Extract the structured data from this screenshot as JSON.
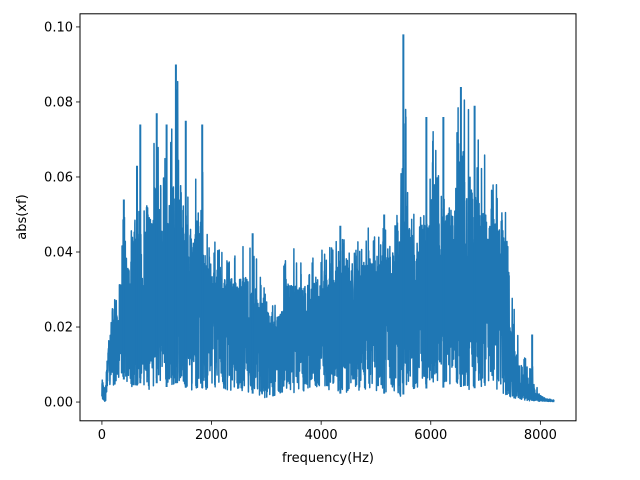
{
  "chart_data": {
    "type": "line",
    "title": "",
    "xlabel": "frequency(Hz)",
    "ylabel": "abs(xf)",
    "xlim": [
      -400,
      8650
    ],
    "ylim": [
      -0.005,
      0.1035
    ],
    "xticks": [
      0,
      2000,
      4000,
      6000,
      8000
    ],
    "xtick_labels": [
      "0",
      "2000",
      "4000",
      "6000",
      "8000"
    ],
    "yticks": [
      0.0,
      0.02,
      0.04,
      0.06,
      0.08,
      0.1
    ],
    "ytick_labels": [
      "0.00",
      "0.02",
      "0.04",
      "0.06",
      "0.08",
      "0.10"
    ],
    "grid": false,
    "series": [
      {
        "color": "#1f77b4",
        "x_range": [
          0,
          8250
        ],
        "envelope": {
          "x": [
            0,
            60,
            120,
            200,
            300,
            400,
            500,
            600,
            700,
            800,
            900,
            1000,
            1100,
            1200,
            1350,
            1500,
            1650,
            1800,
            1900,
            2000,
            2200,
            2400,
            2600,
            2800,
            3000,
            3200,
            3400,
            3600,
            3800,
            4000,
            4200,
            4400,
            4600,
            4800,
            5000,
            5200,
            5400,
            5500,
            5600,
            5800,
            6000,
            6200,
            6400,
            6550,
            6700,
            6850,
            7000,
            7200,
            7350,
            7450,
            7550,
            7700,
            7800,
            7900,
            8000,
            8100,
            8250
          ],
          "upper": [
            0.0075,
            0.004,
            0.017,
            0.033,
            0.026,
            0.054,
            0.044,
            0.067,
            0.074,
            0.05,
            0.069,
            0.077,
            0.058,
            0.074,
            0.09,
            0.075,
            0.056,
            0.074,
            0.045,
            0.044,
            0.043,
            0.04,
            0.045,
            0.04,
            0.03,
            0.028,
            0.043,
            0.04,
            0.04,
            0.044,
            0.042,
            0.047,
            0.042,
            0.046,
            0.05,
            0.047,
            0.05,
            0.098,
            0.051,
            0.05,
            0.076,
            0.058,
            0.074,
            0.084,
            0.079,
            0.072,
            0.067,
            0.064,
            0.054,
            0.035,
            0.023,
            0.012,
            0.018,
            0.005,
            0.0025,
            0.001,
            0.0005
          ],
          "lower": [
            0.0,
            0.0,
            0.003,
            0.004,
            0.005,
            0.006,
            0.004,
            0.004,
            0.005,
            0.004,
            0.003,
            0.005,
            0.004,
            0.004,
            0.005,
            0.004,
            0.003,
            0.004,
            0.003,
            0.004,
            0.003,
            0.003,
            0.003,
            0.002,
            0.001,
            0.002,
            0.003,
            0.002,
            0.003,
            0.004,
            0.003,
            0.002,
            0.003,
            0.003,
            0.003,
            0.002,
            0.001,
            0.002,
            0.003,
            0.003,
            0.004,
            0.004,
            0.003,
            0.004,
            0.003,
            0.004,
            0.004,
            0.003,
            0.002,
            0.001,
            0.001,
            0.0005,
            0.0003,
            0.0003,
            0.0002,
            0.0002,
            0.0001
          ],
          "typical": [
            0.005,
            0.002,
            0.012,
            0.018,
            0.018,
            0.025,
            0.027,
            0.03,
            0.03,
            0.031,
            0.032,
            0.032,
            0.031,
            0.03,
            0.029,
            0.029,
            0.028,
            0.028,
            0.027,
            0.026,
            0.024,
            0.022,
            0.02,
            0.019,
            0.017,
            0.016,
            0.018,
            0.02,
            0.021,
            0.022,
            0.024,
            0.025,
            0.026,
            0.027,
            0.027,
            0.028,
            0.028,
            0.029,
            0.029,
            0.03,
            0.031,
            0.032,
            0.032,
            0.032,
            0.032,
            0.032,
            0.031,
            0.03,
            0.025,
            0.012,
            0.006,
            0.003,
            0.002,
            0.0015,
            0.001,
            0.0005,
            0.0003
          ]
        },
        "peaks": [
          [
            400,
            0.054
          ],
          [
            640,
            0.063
          ],
          [
            700,
            0.074
          ],
          [
            1000,
            0.077
          ],
          [
            1180,
            0.074
          ],
          [
            1350,
            0.09
          ],
          [
            1530,
            0.075
          ],
          [
            1830,
            0.074
          ],
          [
            2750,
            0.045
          ],
          [
            4350,
            0.047
          ],
          [
            5150,
            0.05
          ],
          [
            5500,
            0.098
          ],
          [
            5920,
            0.076
          ],
          [
            6230,
            0.076
          ],
          [
            6550,
            0.084
          ],
          [
            6800,
            0.079
          ],
          [
            7850,
            0.018
          ]
        ]
      }
    ]
  }
}
